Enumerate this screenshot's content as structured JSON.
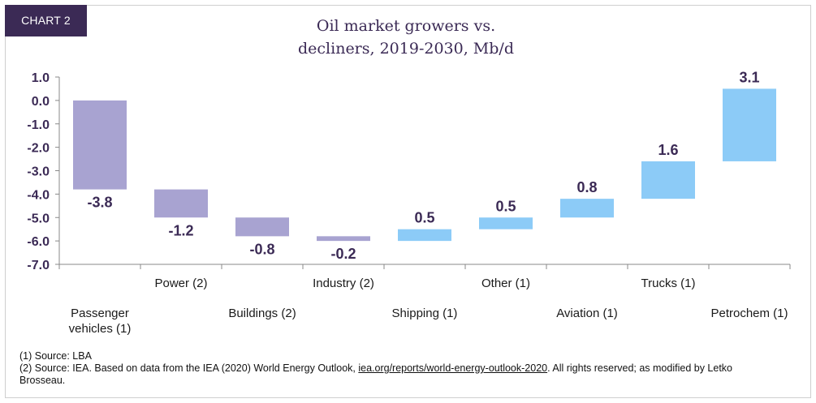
{
  "badge": "CHART 2",
  "chart_data": {
    "type": "bar",
    "title": "Oil market growers vs. decliners, 2019-2030, Mb/d",
    "title_lines": [
      "Oil market growers vs.",
      "decliners, 2019-2030, Mb/d"
    ],
    "categories": [
      "Passenger vehicles (1)",
      "Power (2)",
      "Buildings (2)",
      "Industry (2)",
      "Shipping (1)",
      "Other (1)",
      "Aviation (1)",
      "Trucks (1)",
      "Petrochem (1)"
    ],
    "values": [
      -3.8,
      -1.2,
      -0.8,
      -0.2,
      0.5,
      0.5,
      0.8,
      1.6,
      3.1
    ],
    "bar_ranges": [
      [
        -3.8,
        0.0
      ],
      [
        -5.0,
        -3.8
      ],
      [
        -5.8,
        -5.0
      ],
      [
        -6.0,
        -5.8
      ],
      [
        -6.0,
        -5.5
      ],
      [
        -5.5,
        -5.0
      ],
      [
        -5.0,
        -4.2
      ],
      [
        -4.2,
        -2.6
      ],
      [
        -2.6,
        0.5
      ]
    ],
    "value_labels": [
      "-3.8",
      "-1.2",
      "-0.8",
      "-0.2",
      "0.5",
      "0.5",
      "0.8",
      "1.6",
      "3.1"
    ],
    "ylim": [
      -7.0,
      1.0
    ],
    "yticks": [
      "1.0",
      "0.0",
      "-1.0",
      "-2.0",
      "-3.0",
      "-4.0",
      "-5.0",
      "-6.0",
      "-7.0"
    ],
    "category_label_lines": [
      [
        "Passenger",
        "vehicles (1)"
      ],
      [
        "Power (2)"
      ],
      [
        "Buildings (2)"
      ],
      [
        "Industry (2)"
      ],
      [
        "Shipping (1)"
      ],
      [
        "Other (1)"
      ],
      [
        "Aviation (1)"
      ],
      [
        "Trucks (1)"
      ],
      [
        "Petrochem (1)"
      ]
    ],
    "colors": {
      "decline": "#a8a3d1",
      "growth": "#8ccbf7",
      "axis": "#888888",
      "label": "#3b2a55"
    },
    "grid": false,
    "legend": "none"
  },
  "footnotes": {
    "line1": "(1) Source: LBA",
    "line2_pre": "(2) Source: IEA. Based on data from the IEA (2020) World Energy Outlook, ",
    "line2_link": "iea.org/reports/world-energy-outlook-2020",
    "line2_post": ". All rights reserved; as modified by Letko",
    "line3": "Brosseau."
  }
}
